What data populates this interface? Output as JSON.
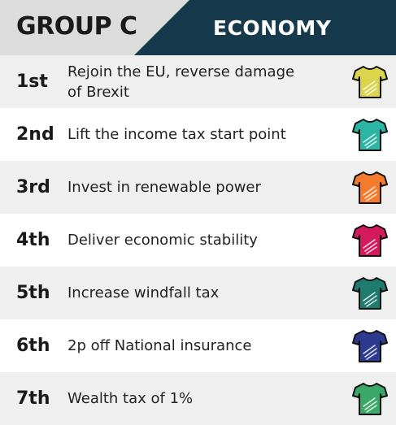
{
  "header": {
    "group": "GROUP C",
    "category": "ECONOMY"
  },
  "rows": [
    {
      "rank": "1st",
      "text": "Rejoin the EU, reverse damage of Brexit",
      "shirt_color": "#dcd44c"
    },
    {
      "rank": "2nd",
      "text": "Lift the income tax start point",
      "shirt_color": "#2bb5a5"
    },
    {
      "rank": "3rd",
      "text": "Invest in renewable power",
      "shirt_color": "#f37b2b"
    },
    {
      "rank": "4th",
      "text": "Deliver economic stability",
      "shirt_color": "#d41a5c"
    },
    {
      "rank": "5th",
      "text": "Increase windfall tax",
      "shirt_color": "#1f7b6f"
    },
    {
      "rank": "6th",
      "text": "2p off National insurance",
      "shirt_color": "#2c3b90"
    },
    {
      "rank": "7th",
      "text": "Wealth tax of 1%",
      "shirt_color": "#3aa866"
    }
  ]
}
